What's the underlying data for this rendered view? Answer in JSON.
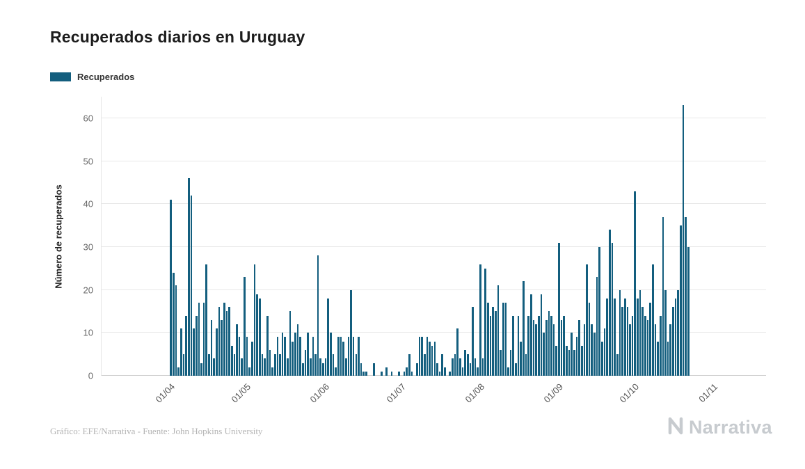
{
  "legend": {
    "label": "Recuperados"
  },
  "footer": {
    "credit": "Gráfico: EFE/Narrativa - Fuente: John Hopkins University",
    "brand": "Narrativa"
  },
  "chart_data": {
    "type": "bar",
    "title": "Recuperados diarios en Uruguay",
    "series_name": "Recuperados",
    "xlabel": "",
    "ylabel": "Número de recuperados",
    "y_ticks": [
      0,
      10,
      20,
      30,
      40,
      50,
      60
    ],
    "ymax": 65,
    "grid": true,
    "legend_position": "top-left",
    "bar_color": "#135E7E",
    "x_tick_labels": [
      "01/04",
      "01/05",
      "01/06",
      "01/07",
      "01/08",
      "01/09",
      "01/10",
      "01/11"
    ],
    "x_tick_day_offsets": [
      27,
      57,
      88,
      118,
      149,
      180,
      210,
      241
    ],
    "axis_total_days": 262,
    "values_start_day_offset": 27,
    "values_start_label": "01/04",
    "values": [
      41,
      24,
      21,
      2,
      11,
      5,
      14,
      46,
      42,
      11,
      14,
      17,
      3,
      17,
      26,
      5,
      13,
      4,
      11,
      16,
      13,
      17,
      15,
      16,
      7,
      5,
      12,
      9,
      4,
      23,
      9,
      2,
      8,
      26,
      19,
      18,
      5,
      4,
      14,
      6,
      2,
      5,
      9,
      5,
      10,
      9,
      4,
      15,
      8,
      10,
      12,
      9,
      3,
      6,
      10,
      4,
      9,
      5,
      28,
      4,
      3,
      4,
      18,
      10,
      5,
      2,
      9,
      9,
      8,
      4,
      9,
      20,
      9,
      5,
      9,
      3,
      1,
      1,
      0,
      0,
      3,
      0,
      0,
      1,
      0,
      2,
      0,
      1,
      0,
      0,
      1,
      0,
      1,
      2,
      5,
      1,
      0,
      3,
      9,
      9,
      5,
      9,
      8,
      7,
      8,
      3,
      1,
      5,
      2,
      0,
      1,
      4,
      5,
      11,
      4,
      2,
      6,
      5,
      3,
      16,
      4,
      2,
      26,
      4,
      25,
      17,
      14,
      16,
      15,
      21,
      6,
      17,
      17,
      2,
      6,
      14,
      3,
      14,
      8,
      22,
      5,
      14,
      19,
      13,
      12,
      14,
      19,
      10,
      13,
      15,
      14,
      12,
      7,
      31,
      13,
      14,
      7,
      6,
      10,
      6,
      9,
      13,
      7,
      12,
      26,
      17,
      12,
      10,
      23,
      30,
      8,
      11,
      18,
      34,
      31,
      18,
      5,
      20,
      16,
      18,
      16,
      12,
      14,
      43,
      18,
      20,
      16,
      14,
      13,
      17,
      26,
      12,
      8,
      14,
      37,
      20,
      8,
      12,
      16,
      18,
      20,
      35,
      63,
      37,
      30
    ]
  }
}
